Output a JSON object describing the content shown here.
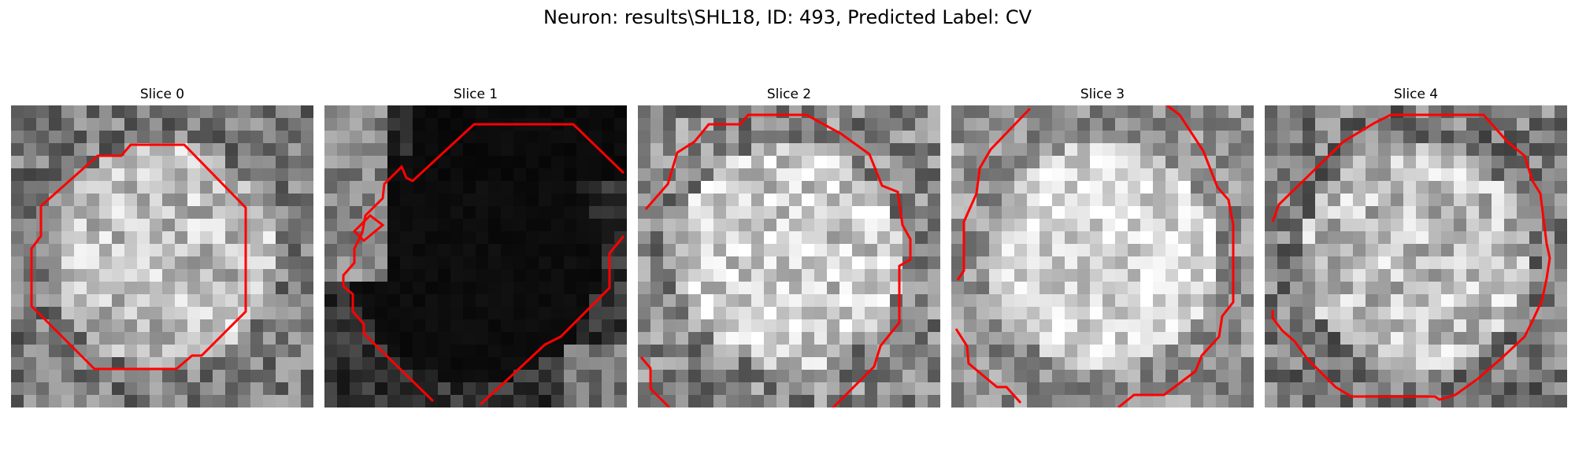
{
  "figure": {
    "title": "Neuron: results\\SHL18, ID: 493, Predicted Label: CV"
  },
  "panels": [
    {
      "title": "Slice 0",
      "base": 150,
      "jitter": 55,
      "bright_mode": "disk",
      "seed": 11
    },
    {
      "title": "Slice 1",
      "base": 110,
      "jitter": 45,
      "bright_mode": "dark-center",
      "seed": 23
    },
    {
      "title": "Slice 2",
      "base": 165,
      "jitter": 60,
      "bright_mode": "disk",
      "seed": 37
    },
    {
      "title": "Slice 3",
      "base": 175,
      "jitter": 50,
      "bright_mode": "disk",
      "seed": 53
    },
    {
      "title": "Slice 4",
      "base": 150,
      "jitter": 60,
      "bright_mode": "disk",
      "seed": 71
    }
  ],
  "contour_color": "#ff0000"
}
